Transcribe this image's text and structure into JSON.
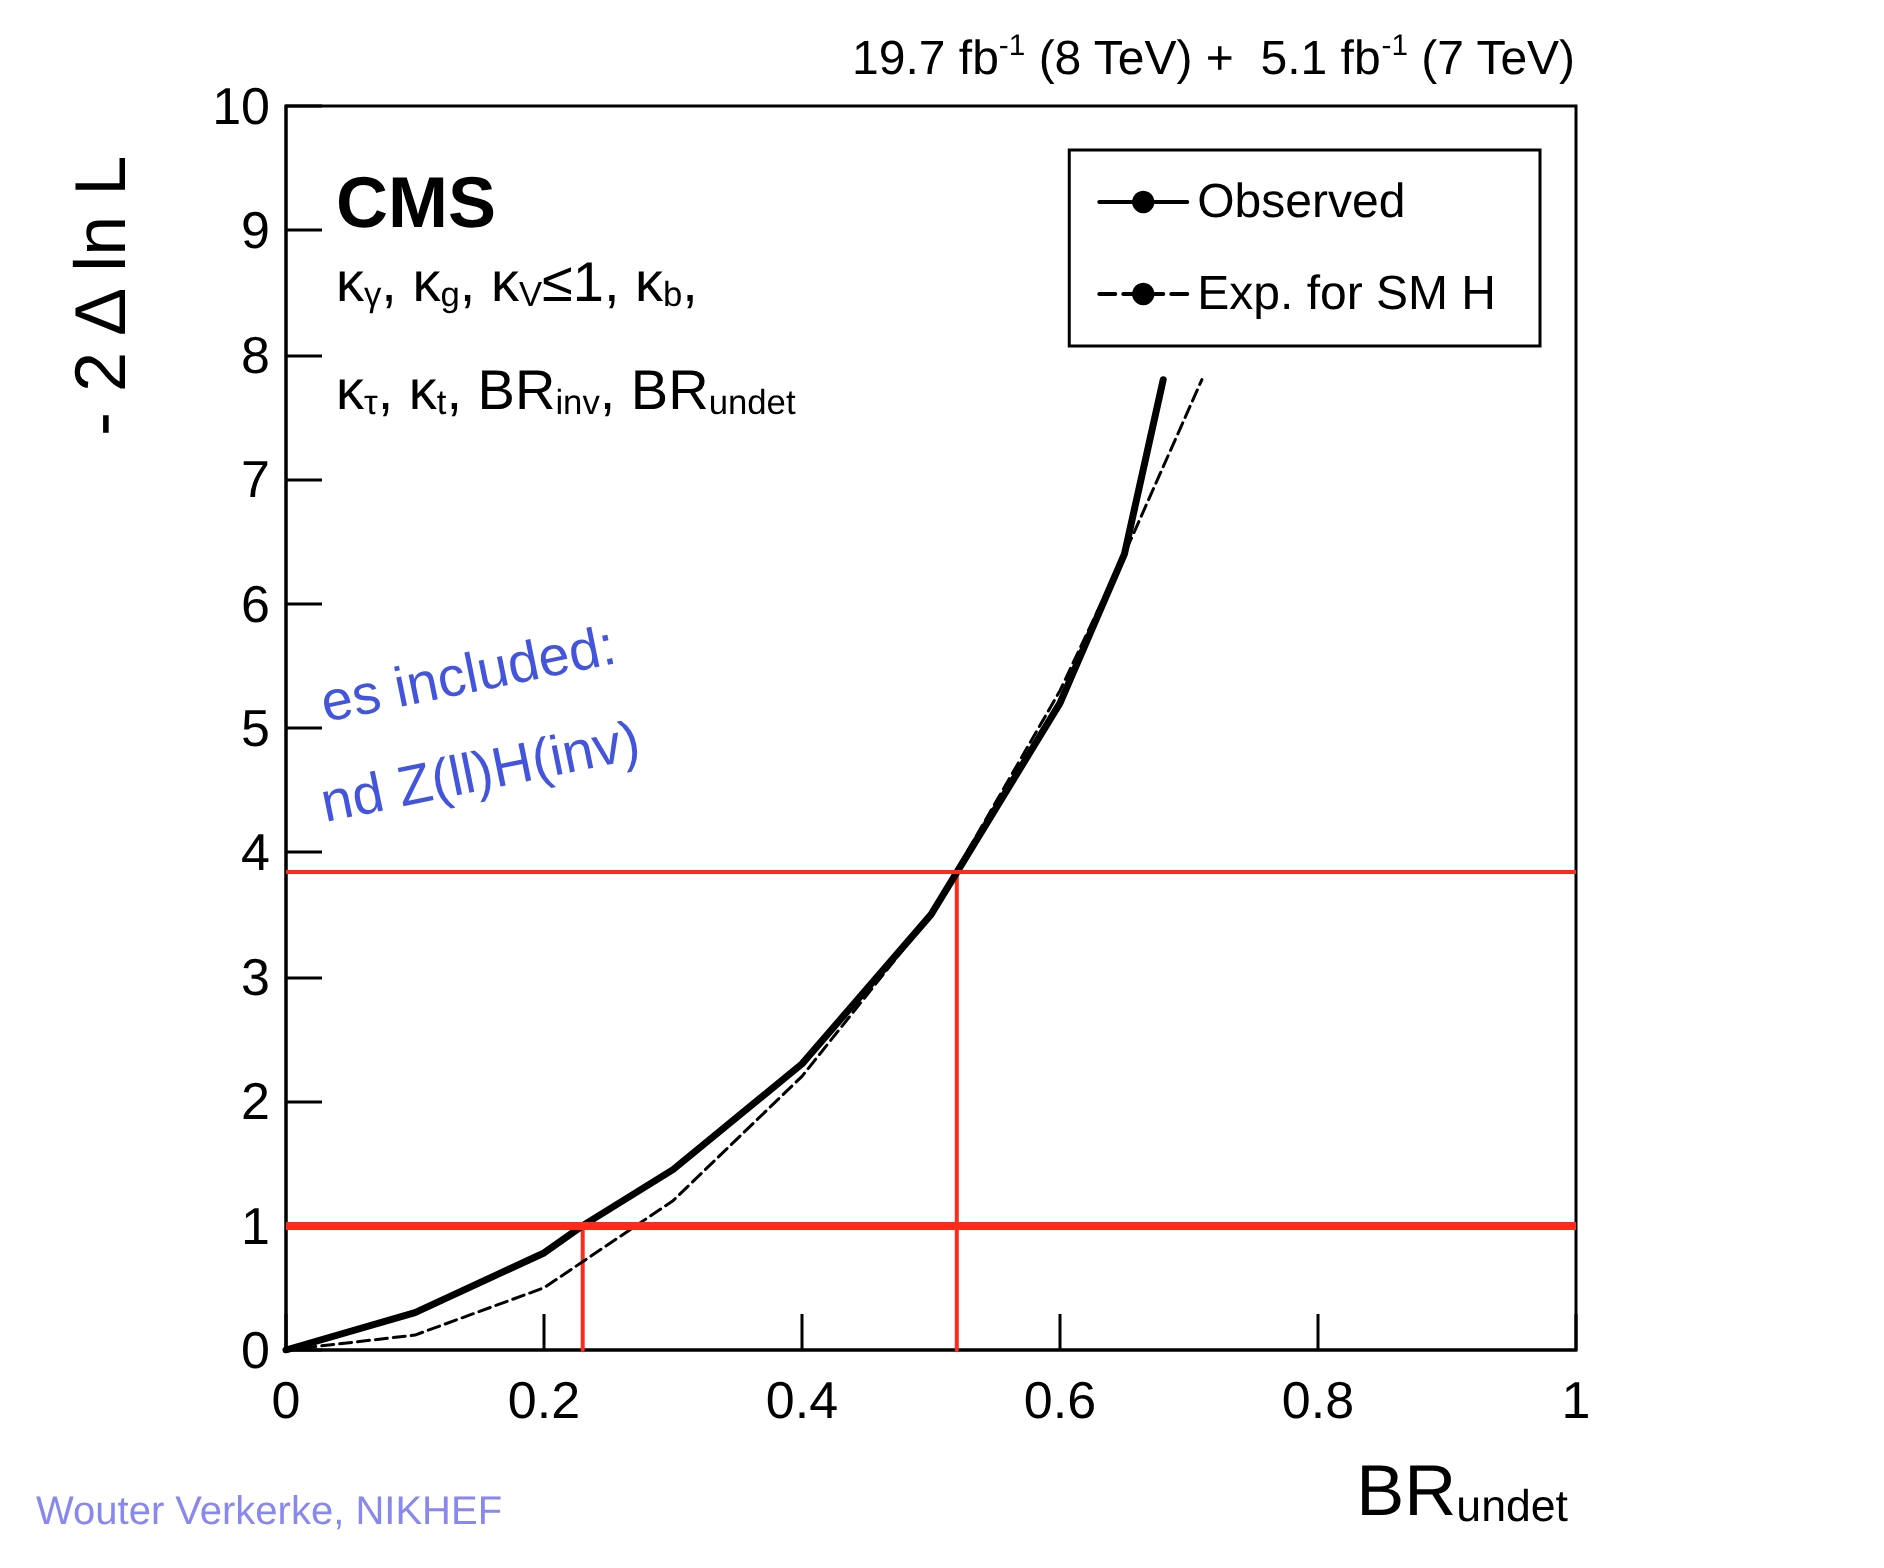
{
  "chart_data": {
    "type": "line",
    "title": "CMS",
    "subtitle": "19.7 fb$^{-1}$ (8 TeV) +  5.1 fb$^{-1}$ (7 TeV)",
    "xlabel": "BR$_{undet}$",
    "ylabel": "- 2 Δ ln L",
    "annotations": [
      "κ$_{γ}$, κ$_{g}$, κ$_{V}$≤1, κ$_{b}$,",
      "κ$_{τ}$, κ$_{t}$, BR$_{inv}$, BR$_{undet}$",
      "es included:",
      "nd Z(ll)H(inv)",
      "Wouter Verkerke, NIKHEF"
    ],
    "xlim": [
      0,
      1
    ],
    "xticks": [
      0,
      0.2,
      0.4,
      0.6,
      0.8,
      1
    ],
    "ylim": [
      0,
      10
    ],
    "yticks": [
      0,
      1,
      2,
      3,
      4,
      5,
      6,
      7,
      8,
      9,
      10
    ],
    "grid": false,
    "legend": "top right",
    "marker": "none",
    "series": [
      {
        "name": "Observed",
        "color": "#000000",
        "line_style": "solid",
        "x": [
          0,
          0.1,
          0.2,
          0.23,
          0.3,
          0.4,
          0.5,
          0.52,
          0.6,
          0.65,
          0.68
        ],
        "values": [
          0,
          0.3,
          0.78,
          1,
          1.45,
          2.3,
          3.5,
          3.84,
          5.2,
          6.4,
          7.8
        ]
      },
      {
        "name": "Exp. for SM H",
        "color": "#000000",
        "line_style": "dashed",
        "x": [
          0,
          0.1,
          0.2,
          0.3,
          0.4,
          0.5,
          0.6,
          0.65,
          0.71
        ],
        "values": [
          0,
          0.12,
          0.5,
          1.2,
          2.2,
          3.5,
          5.3,
          6.4,
          7.8
        ]
      },
      {
        "color": "#ff2a1a",
        "line_style": "solid",
        "x": [
          0.23,
          0.23
        ],
        "values": [
          0,
          1
        ]
      },
      {
        "color": "#ff2a1a",
        "line_style": "solid",
        "x": [
          0.52,
          0.52
        ],
        "values": [
          0,
          3.84
        ]
      }
    ],
    "ref_lines": [
      {
        "axis": "y",
        "value": 1,
        "color": "#ff2a1a"
      },
      {
        "axis": "y",
        "value": 3.84,
        "color": "#ff2a1a"
      }
    ]
  }
}
